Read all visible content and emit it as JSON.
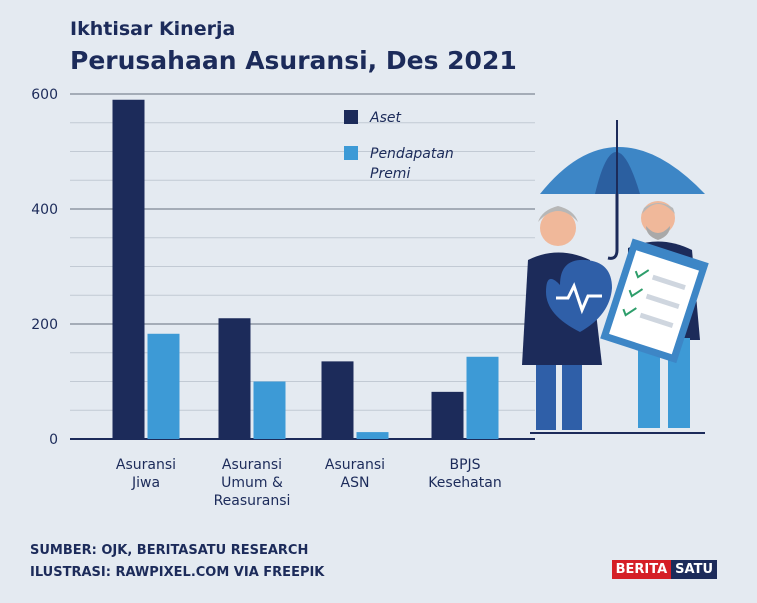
{
  "header": {
    "title": "Ikhtisar Kinerja",
    "subtitle": "Perusahaan Asuransi, Des 2021"
  },
  "chart_data": {
    "type": "bar",
    "categories": [
      [
        "Asuransi",
        "Jiwa"
      ],
      [
        "Asuransi",
        "Umum &",
        "Reasuransi"
      ],
      [
        "Asuransi",
        "ASN"
      ],
      [
        "BPJS",
        "Kesehatan"
      ]
    ],
    "series": [
      {
        "name": "Aset",
        "values": [
          590,
          210,
          135,
          82
        ],
        "color": "#1c2b5a"
      },
      {
        "name": "Pendapatan Premi",
        "values": [
          183,
          100,
          12,
          143
        ],
        "color": "#3d9ad6"
      }
    ],
    "legend_labels": [
      [
        "Aset"
      ],
      [
        "Pendapatan",
        "Premi"
      ]
    ],
    "yticks": [
      0,
      200,
      400,
      600
    ],
    "ylim": [
      0,
      600
    ],
    "grid": true,
    "legend_position": "top-right"
  },
  "footer": {
    "source": "SUMBER: OJK, BERITASATU RESEARCH",
    "illustration": "ILUSTRASI: RAWPIXEL.COM VIA FREEPIK"
  },
  "logo": {
    "part1": "BERITA",
    "part2": "SATU"
  }
}
